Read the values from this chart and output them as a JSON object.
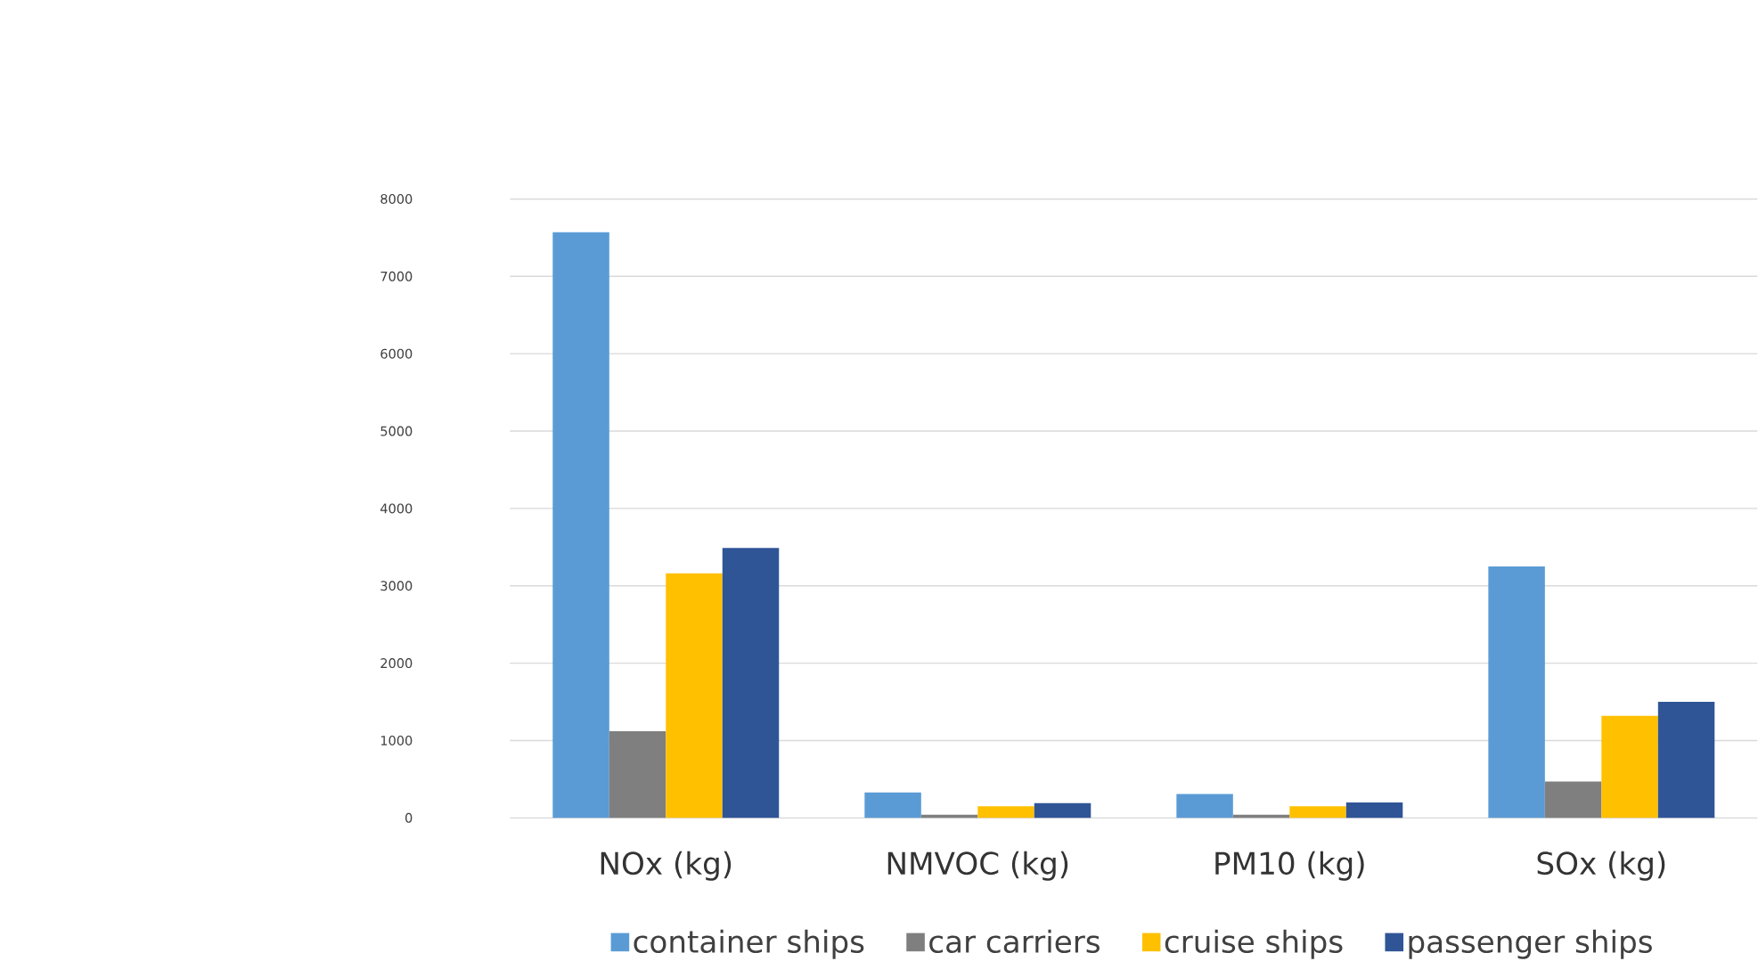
{
  "chart_data": {
    "type": "bar",
    "categories": [
      "NOx (kg)",
      "NMVOC (kg)",
      "PM10 (kg)",
      "SOx  (kg)"
    ],
    "series": [
      {
        "name": "container ships",
        "color": "#5b9bd5",
        "values": [
          7570,
          330,
          310,
          3250
        ]
      },
      {
        "name": "car carriers",
        "color": "#7f7f7f",
        "values": [
          1120,
          40,
          40,
          470
        ]
      },
      {
        "name": "cruise ships",
        "color": "#ffc000",
        "values": [
          3160,
          150,
          150,
          1320
        ]
      },
      {
        "name": "passenger ships",
        "color": "#2f5597",
        "values": [
          3490,
          190,
          200,
          1500
        ]
      }
    ],
    "ylim": [
      0,
      8000
    ],
    "yticks": [
      0,
      1000,
      2000,
      3000,
      4000,
      5000,
      6000,
      7000,
      8000
    ],
    "grid": "y",
    "legend": "bottom"
  }
}
